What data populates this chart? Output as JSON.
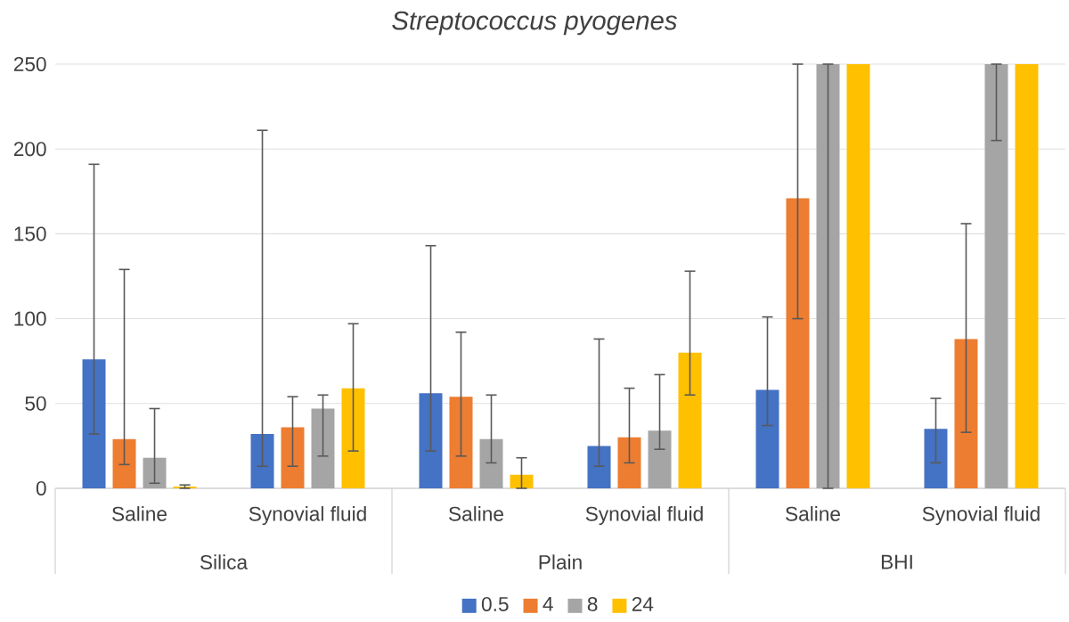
{
  "chart_data": {
    "type": "bar",
    "title": "Streptococcus pyogenes",
    "categories": [
      "Saline",
      "Synovial fluid",
      "Saline",
      "Synovial fluid",
      "Saline",
      "Synovial fluid"
    ],
    "annotations": [
      "Silica",
      "Plain",
      "BHI"
    ],
    "series": [
      {
        "name": "0.5",
        "color": "#4472c4",
        "values": [
          76,
          32,
          56,
          25,
          58,
          35
        ],
        "errors": [
          [
            32,
            191
          ],
          [
            13,
            211
          ],
          [
            22,
            143
          ],
          [
            13,
            88
          ],
          [
            37,
            101
          ],
          [
            15,
            53
          ]
        ]
      },
      {
        "name": "4",
        "color": "#ed7d31",
        "values": [
          29,
          36,
          54,
          30,
          171,
          88
        ],
        "errors": [
          [
            14,
            129
          ],
          [
            13,
            54
          ],
          [
            19,
            92
          ],
          [
            15,
            59
          ],
          [
            100,
            250
          ],
          [
            33,
            156
          ]
        ]
      },
      {
        "name": "8",
        "color": "#a5a5a5",
        "values": [
          18,
          47,
          29,
          34,
          250,
          250
        ],
        "errors": [
          [
            3,
            47
          ],
          [
            19,
            55
          ],
          [
            15,
            55
          ],
          [
            23,
            67
          ],
          [
            0,
            250
          ],
          [
            205,
            250
          ]
        ]
      },
      {
        "name": "24",
        "color": "#ffc000",
        "values": [
          1,
          59,
          8,
          80,
          250,
          250
        ],
        "errors": [
          [
            0,
            2
          ],
          [
            22,
            97
          ],
          [
            0,
            18
          ],
          [
            55,
            128
          ],
          null,
          null
        ]
      }
    ],
    "ylim": [
      0,
      250
    ],
    "yticks": [
      0,
      50,
      100,
      150,
      200,
      250
    ],
    "grid": "y",
    "legend": "bottom"
  }
}
